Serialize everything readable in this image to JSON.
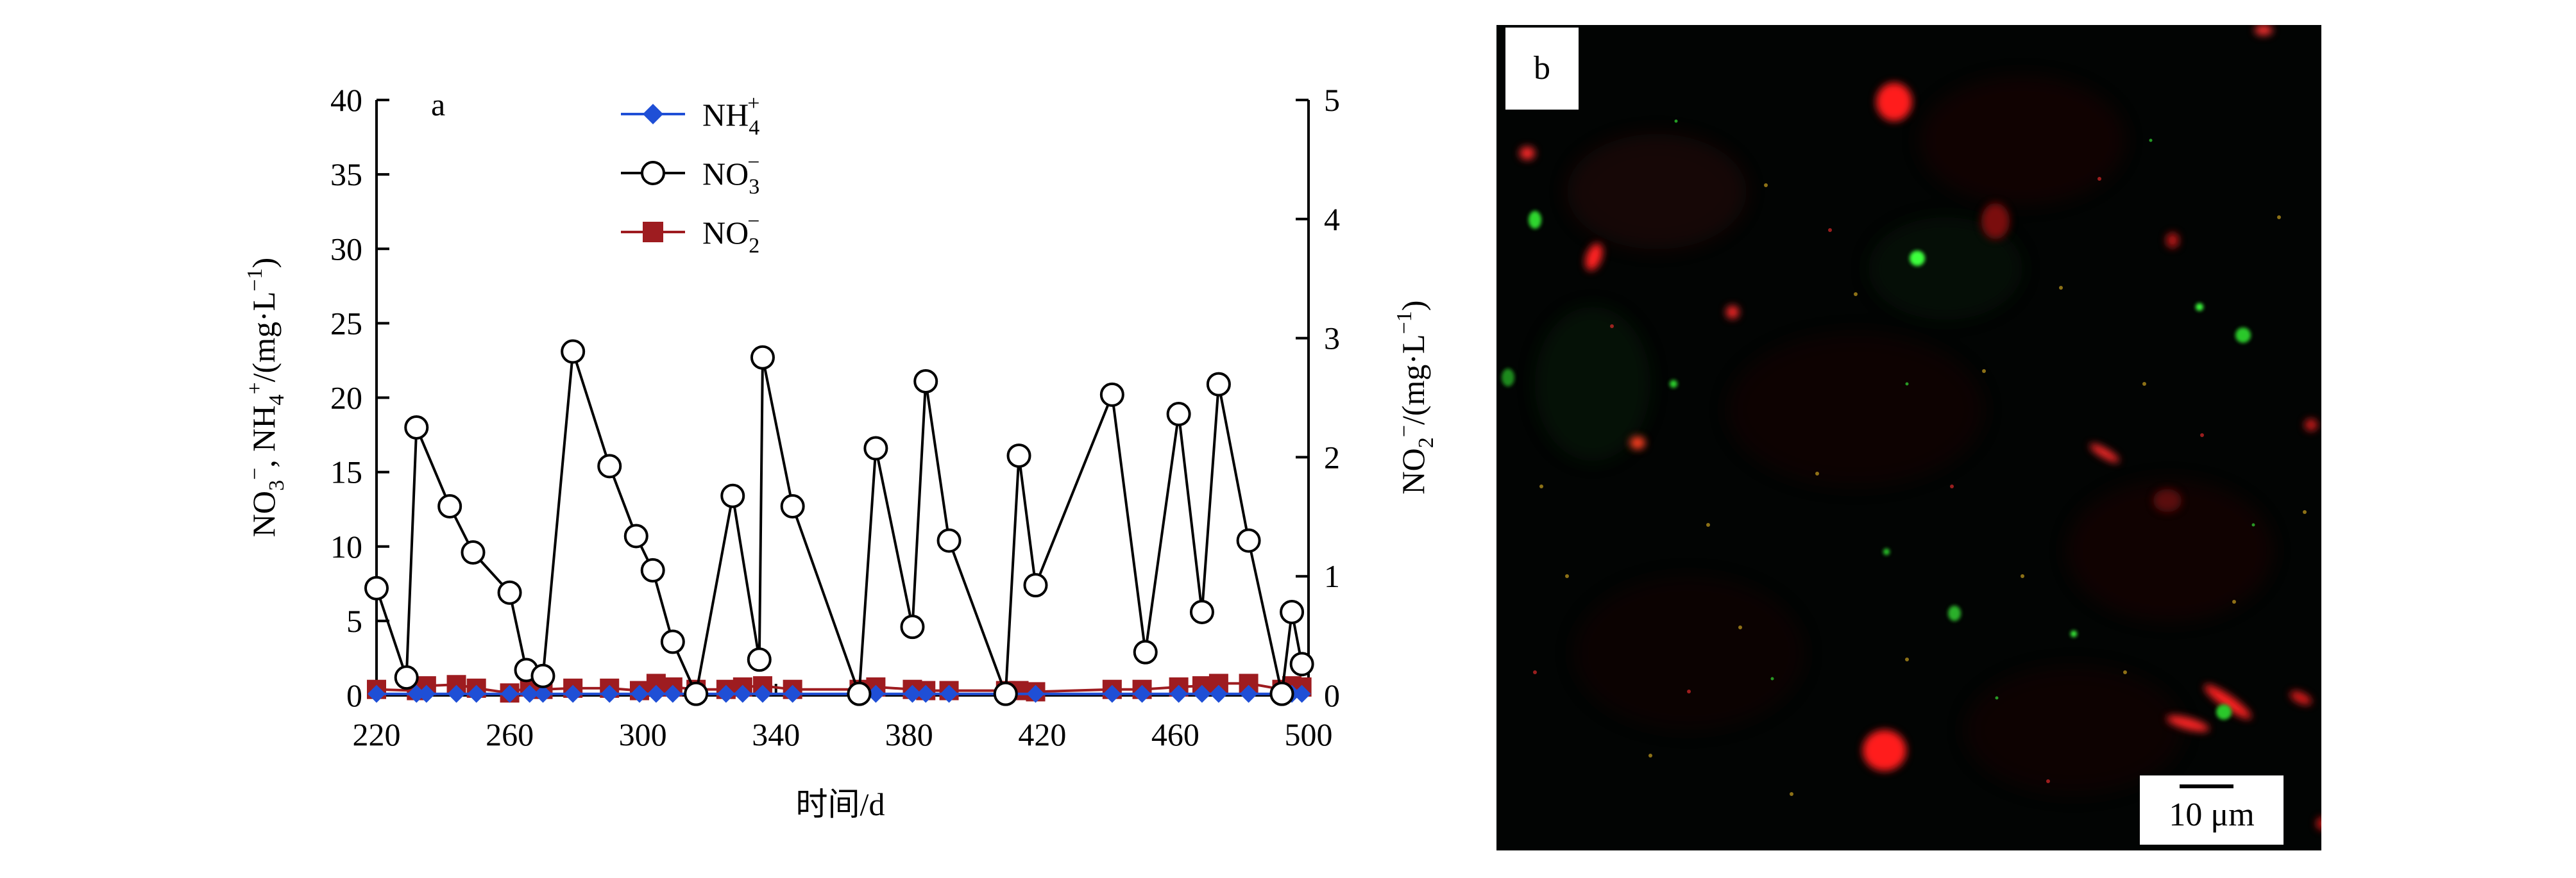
{
  "chart_data": [
    {
      "type": "line",
      "panel_label": "a",
      "xlabel": "时间/d",
      "ylabel_left": "NO3-, NH4+/(mg·L-1)",
      "ylabel_right": "NO2-/(mg·L-1)",
      "xlim": [
        220,
        500
      ],
      "ylim_left": [
        0,
        40
      ],
      "ylim_right": [
        0,
        5
      ],
      "x_ticks": [
        220,
        260,
        300,
        340,
        380,
        420,
        460,
        500
      ],
      "y_ticks_left": [
        0,
        5,
        10,
        15,
        20,
        25,
        30,
        35,
        40
      ],
      "y_ticks_right": [
        0,
        1,
        2,
        3,
        4,
        5
      ],
      "legend_position": "top-center",
      "series": [
        {
          "name": "NH4+",
          "axis": "left",
          "color": "#1f4fd6",
          "marker": "diamond",
          "x": [
            220,
            232,
            235,
            244,
            250,
            260,
            266,
            270,
            279,
            290,
            299,
            304,
            309,
            316,
            325,
            330,
            336,
            345,
            365,
            370,
            381,
            385,
            392,
            409,
            418,
            441,
            450,
            461,
            468,
            473,
            482,
            492,
            495,
            498
          ],
          "y": [
            0.1,
            0.1,
            0.1,
            0.1,
            0.1,
            0.1,
            0.1,
            0.1,
            0.1,
            0.1,
            0.1,
            0.1,
            0.1,
            0.1,
            0.1,
            0.1,
            0.1,
            0.1,
            0.1,
            0.1,
            0.1,
            0.1,
            0.1,
            0.1,
            0.1,
            0.1,
            0.1,
            0.1,
            0.1,
            0.1,
            0.1,
            0.1,
            0.1,
            0.1
          ]
        },
        {
          "name": "NO3-",
          "axis": "left",
          "color": "#000000",
          "marker": "open-circle",
          "x": [
            220,
            229,
            232,
            242,
            249,
            260,
            265,
            270,
            279,
            290,
            298,
            303,
            309,
            316,
            327,
            335,
            336,
            345,
            365,
            370,
            381,
            385,
            392,
            409,
            413,
            418,
            441,
            451,
            461,
            468,
            473,
            482,
            492,
            495,
            498
          ],
          "y": [
            7.2,
            1.2,
            18.0,
            12.7,
            9.6,
            6.9,
            1.7,
            1.3,
            23.1,
            15.4,
            10.7,
            8.4,
            3.6,
            0.1,
            13.4,
            2.4,
            22.7,
            12.7,
            0.1,
            16.6,
            4.6,
            21.1,
            10.4,
            0.1,
            16.1,
            7.4,
            20.2,
            2.9,
            18.9,
            5.6,
            20.9,
            10.4,
            0.1,
            5.6,
            2.1
          ]
        },
        {
          "name": "NO2-",
          "axis": "right",
          "color": "#9e1c20",
          "marker": "square",
          "x": [
            220,
            232,
            235,
            244,
            250,
            260,
            266,
            270,
            279,
            290,
            299,
            304,
            309,
            316,
            325,
            330,
            336,
            345,
            365,
            370,
            381,
            385,
            392,
            409,
            413,
            418,
            441,
            450,
            461,
            468,
            473,
            482,
            492,
            495,
            498
          ],
          "y": [
            0.05,
            0.04,
            0.08,
            0.09,
            0.06,
            0.02,
            0.07,
            0.05,
            0.06,
            0.06,
            0.04,
            0.1,
            0.07,
            0.05,
            0.05,
            0.07,
            0.08,
            0.05,
            0.05,
            0.07,
            0.05,
            0.04,
            0.04,
            0.04,
            0.04,
            0.03,
            0.05,
            0.05,
            0.07,
            0.08,
            0.1,
            0.1,
            0.05,
            0.08,
            0.07
          ]
        }
      ]
    }
  ],
  "image_panel": {
    "panel_label": "b",
    "scale_bar_label": "10 μm",
    "background_color": "#020403",
    "signal_colors": [
      "#ff1a1a",
      "#3cff3c",
      "#c8a020"
    ]
  }
}
